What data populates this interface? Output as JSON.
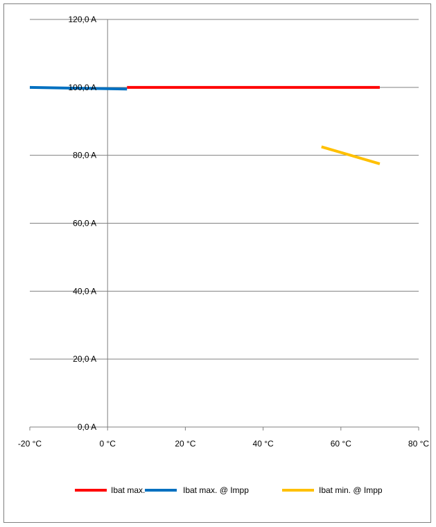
{
  "chart_data": {
    "type": "line",
    "title": "",
    "xlabel": "",
    "ylabel": "",
    "x_tick_labels": [
      "-20 °C",
      "0 °C",
      "20 °C",
      "40 °C",
      "60 °C",
      "80 °C"
    ],
    "y_tick_labels": [
      "0,0 A",
      "20,0 A",
      "40,0 A",
      "60,0 A",
      "80,0 A",
      "100,0 A",
      "120,0 A"
    ],
    "x_ticks": [
      -20,
      0,
      20,
      40,
      60,
      80
    ],
    "y_ticks": [
      0,
      20,
      40,
      60,
      80,
      100,
      120
    ],
    "xlim": [
      -20,
      80
    ],
    "ylim": [
      0,
      120
    ],
    "grid": "horizontal",
    "legend_position": "bottom",
    "series": [
      {
        "name": "Ibat max.",
        "color": "#ff0000",
        "x": [
          5,
          70
        ],
        "y": [
          100,
          100
        ]
      },
      {
        "name": "Ibat max. @ Impp",
        "color": "#0070c0",
        "x": [
          -20,
          5
        ],
        "y": [
          100,
          99.5
        ]
      },
      {
        "name": "Ibat min. @ Impp",
        "color": "#ffc000",
        "x": [
          55,
          70
        ],
        "y": [
          82.5,
          77.5
        ]
      }
    ]
  }
}
